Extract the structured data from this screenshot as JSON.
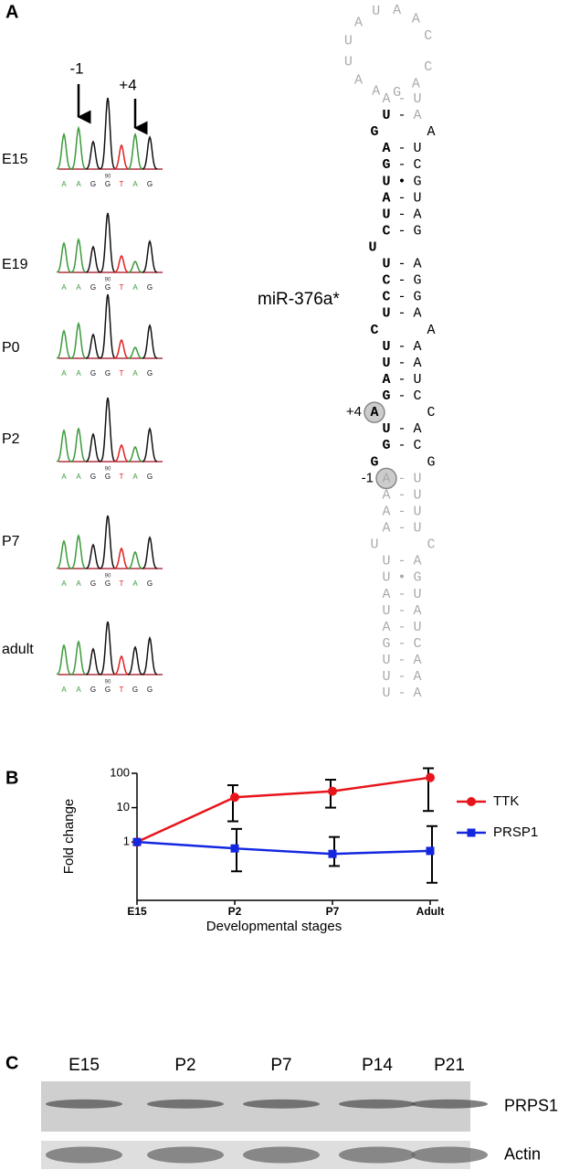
{
  "panel_labels": [
    "A",
    "B",
    "C"
  ],
  "chromatograms": {
    "annotations": [
      "-1",
      "+4"
    ],
    "traces": [
      {
        "label": "E15",
        "bases": [
          "A",
          "A",
          "G",
          "G",
          "T",
          "A",
          "G"
        ],
        "marker": "90"
      },
      {
        "label": "E19",
        "bases": [
          "A",
          "A",
          "G",
          "G",
          "T",
          "A",
          "G"
        ],
        "marker": "90"
      },
      {
        "label": "P0",
        "bases": [
          "A",
          "A",
          "G",
          "G",
          "T",
          "A",
          "G"
        ]
      },
      {
        "label": "P2",
        "bases": [
          "A",
          "A",
          "G",
          "G",
          "T",
          "A",
          "G"
        ],
        "marker": "90"
      },
      {
        "label": "P7",
        "bases": [
          "A",
          "A",
          "G",
          "G",
          "T",
          "A",
          "G"
        ],
        "marker": "90"
      },
      {
        "label": "adult",
        "bases": [
          "A",
          "A",
          "G",
          "G",
          "T",
          "G",
          "G"
        ],
        "marker": "90"
      }
    ]
  },
  "hairpin": {
    "name": "miR-376a*",
    "loop": [
      "C",
      "A",
      "A",
      "U",
      "A",
      "U",
      "U",
      "A",
      "A",
      "G",
      "A",
      "C"
    ],
    "rows": [
      {
        "left": "A",
        "bond": "-",
        "right": "U",
        "color": "#aaa"
      },
      {
        "left": "U",
        "bond": "-",
        "right": "A",
        "color": "#000"
      },
      {
        "left": "G",
        "right": "A",
        "color": "#000"
      },
      {
        "left": "A",
        "bond": "-",
        "right": "U",
        "color": "#000"
      },
      {
        "left": "G",
        "bond": "-",
        "right": "C",
        "color": "#000"
      },
      {
        "left": "U",
        "bond": "•",
        "right": "G",
        "color": "#000"
      },
      {
        "left": "A",
        "bond": "-",
        "right": "U",
        "color": "#000"
      },
      {
        "left": "U",
        "bond": "-",
        "right": "A",
        "color": "#000"
      },
      {
        "left": "C",
        "bond": "-",
        "right": "G",
        "color": "#000"
      },
      {
        "left": "U",
        "color": "#000"
      },
      {
        "left": "U",
        "bond": "-",
        "right": "A",
        "color": "#000"
      },
      {
        "left": "C",
        "bond": "-",
        "right": "G",
        "color": "#000"
      },
      {
        "left": "C",
        "bond": "-",
        "right": "G",
        "color": "#000"
      },
      {
        "left": "U",
        "bond": "-",
        "right": "A",
        "color": "#000"
      },
      {
        "left": "C",
        "right": "A",
        "color": "#000"
      },
      {
        "left": "U",
        "bond": "-",
        "right": "A",
        "color": "#000"
      },
      {
        "left": "U",
        "bond": "-",
        "right": "A",
        "color": "#000"
      },
      {
        "left": "A",
        "bond": "-",
        "right": "U",
        "color": "#000"
      },
      {
        "left": "G",
        "bond": "-",
        "right": "C",
        "color": "#000"
      },
      {
        "left": "A",
        "right": "C",
        "color": "#000",
        "circled": true,
        "note": "+4"
      },
      {
        "left": "U",
        "bond": "-",
        "right": "A",
        "color": "#000"
      },
      {
        "left": "G",
        "bond": "-",
        "right": "C",
        "color": "#000"
      },
      {
        "left": "G",
        "right": "G",
        "color": "#000"
      },
      {
        "left": "A",
        "bond": "-",
        "right": "U",
        "color": "#aaa",
        "circled": true,
        "note": "-1"
      },
      {
        "left": "A",
        "bond": "-",
        "right": "U",
        "color": "#aaa"
      },
      {
        "left": "A",
        "bond": "-",
        "right": "U",
        "color": "#aaa"
      },
      {
        "left": "A",
        "bond": "-",
        "right": "U",
        "color": "#aaa"
      },
      {
        "left": "U",
        "right": "C",
        "color": "#aaa"
      },
      {
        "left": "U",
        "bond": "-",
        "right": "A",
        "color": "#aaa"
      },
      {
        "left": "U",
        "bond": "•",
        "right": "G",
        "color": "#aaa"
      },
      {
        "left": "A",
        "bond": "-",
        "right": "U",
        "color": "#aaa"
      },
      {
        "left": "U",
        "bond": "-",
        "right": "A",
        "color": "#aaa"
      },
      {
        "left": "A",
        "bond": "-",
        "right": "U",
        "color": "#aaa"
      },
      {
        "left": "G",
        "bond": "-",
        "right": "C",
        "color": "#aaa"
      },
      {
        "left": "U",
        "bond": "-",
        "right": "A",
        "color": "#aaa"
      },
      {
        "left": "U",
        "bond": "-",
        "right": "A",
        "color": "#aaa"
      },
      {
        "left": "U",
        "bond": "-",
        "right": "A",
        "color": "#aaa"
      }
    ]
  },
  "chart_data": {
    "type": "line",
    "x_label": "Developmental stages",
    "y_label": "Fold change",
    "categories": [
      "E15",
      "P2",
      "P7",
      "Adult"
    ],
    "log_y": true,
    "ylim": [
      0.02,
      100
    ],
    "yticks": [
      1,
      10,
      100
    ],
    "legend": "right",
    "series": [
      {
        "name": "TTK",
        "color": "#e8141b",
        "marker": "circle",
        "values": [
          1,
          20,
          30,
          75
        ],
        "lower": [
          null,
          4,
          10,
          8
        ],
        "upper": [
          null,
          45,
          65,
          140
        ]
      },
      {
        "name": "PRSP1",
        "color": "#1427e0",
        "marker": "square",
        "values": [
          1,
          0.65,
          0.45,
          0.55
        ],
        "lower": [
          null,
          0.14,
          0.2,
          0.065
        ],
        "upper": [
          null,
          2.4,
          1.4,
          2.9
        ]
      }
    ]
  },
  "blot": {
    "lanes": [
      "E15",
      "P2",
      "P7",
      "P14",
      "P21"
    ],
    "rows": [
      "PRPS1",
      "Actin"
    ]
  }
}
